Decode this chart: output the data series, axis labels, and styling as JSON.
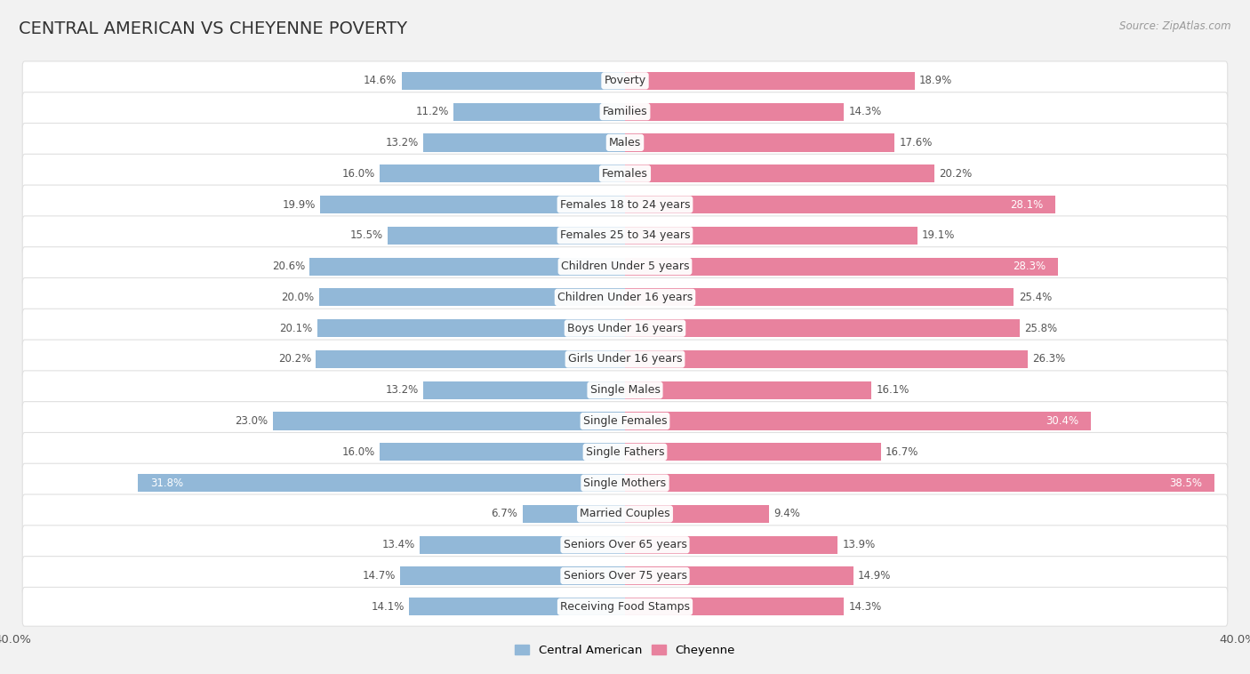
{
  "title": "CENTRAL AMERICAN VS CHEYENNE POVERTY",
  "source": "Source: ZipAtlas.com",
  "categories": [
    "Poverty",
    "Families",
    "Males",
    "Females",
    "Females 18 to 24 years",
    "Females 25 to 34 years",
    "Children Under 5 years",
    "Children Under 16 years",
    "Boys Under 16 years",
    "Girls Under 16 years",
    "Single Males",
    "Single Females",
    "Single Fathers",
    "Single Mothers",
    "Married Couples",
    "Seniors Over 65 years",
    "Seniors Over 75 years",
    "Receiving Food Stamps"
  ],
  "central_american": [
    14.6,
    11.2,
    13.2,
    16.0,
    19.9,
    15.5,
    20.6,
    20.0,
    20.1,
    20.2,
    13.2,
    23.0,
    16.0,
    31.8,
    6.7,
    13.4,
    14.7,
    14.1
  ],
  "cheyenne": [
    18.9,
    14.3,
    17.6,
    20.2,
    28.1,
    19.1,
    28.3,
    25.4,
    25.8,
    26.3,
    16.1,
    30.4,
    16.7,
    38.5,
    9.4,
    13.9,
    14.9,
    14.3
  ],
  "blue_color": "#92b8d8",
  "pink_color": "#e8829e",
  "background_color": "#f2f2f2",
  "row_color_odd": "#f9f9f9",
  "row_color_even": "#eeeeee",
  "axis_max": 40.0,
  "title_fontsize": 14,
  "label_fontsize": 9,
  "value_fontsize": 8.5
}
